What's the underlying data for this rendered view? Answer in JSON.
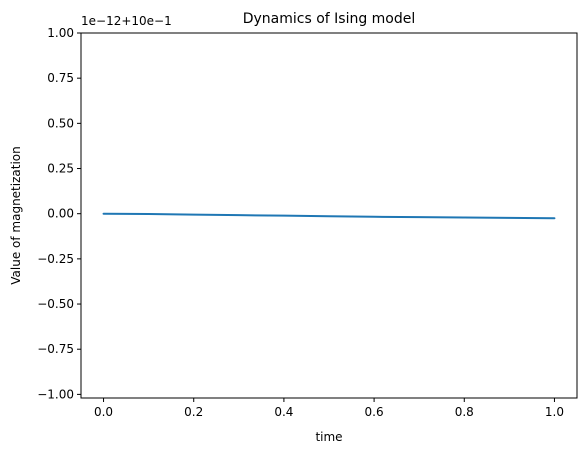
{
  "chart_data": {
    "type": "line",
    "title": "Dynamics of Ising model",
    "xlabel": "time",
    "ylabel": "Value of magnetization",
    "offset_text": "1e−12+10e−1",
    "xlim": [
      -0.05,
      1.05
    ],
    "ylim": [
      -1.02,
      1.0
    ],
    "x_ticks": [
      0.0,
      0.2,
      0.4,
      0.6,
      0.8,
      1.0
    ],
    "x_tick_labels": [
      "0.0",
      "0.2",
      "0.4",
      "0.6",
      "0.8",
      "1.0"
    ],
    "y_ticks": [
      1.0,
      0.75,
      0.5,
      0.25,
      0.0,
      -0.25,
      -0.5,
      -0.75,
      -1.0
    ],
    "y_tick_labels": [
      "1.00",
      "0.75",
      "0.50",
      "0.25",
      "0.00",
      "−0.25",
      "−0.50",
      "−0.75",
      "−1.00"
    ],
    "grid": false,
    "series": [
      {
        "color": "#1f77b4",
        "x": [
          0.0,
          0.1,
          0.2,
          0.3,
          0.4,
          0.5,
          0.6,
          0.7,
          0.8,
          0.9,
          1.0
        ],
        "y": [
          0.0,
          -0.002,
          -0.005,
          -0.008,
          -0.011,
          -0.014,
          -0.017,
          -0.019,
          -0.021,
          -0.023,
          -0.025
        ]
      }
    ]
  }
}
